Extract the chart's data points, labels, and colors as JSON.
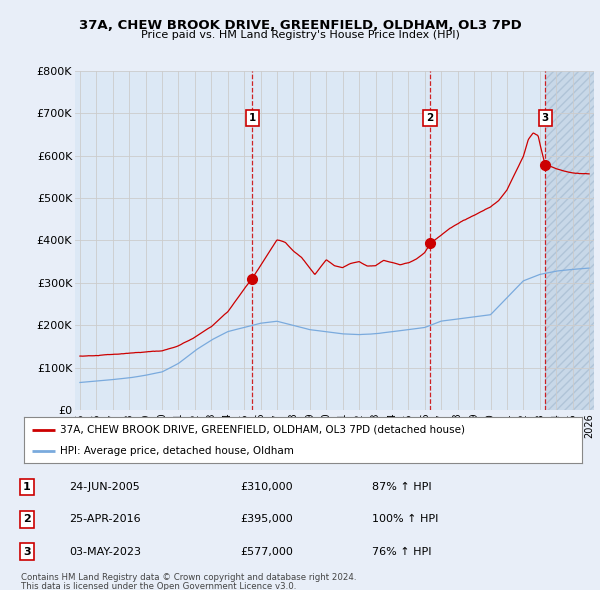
{
  "title": "37A, CHEW BROOK DRIVE, GREENFIELD, OLDHAM, OL3 7PD",
  "subtitle": "Price paid vs. HM Land Registry's House Price Index (HPI)",
  "ylim": [
    0,
    800000
  ],
  "yticks": [
    0,
    100000,
    200000,
    300000,
    400000,
    500000,
    600000,
    700000,
    800000
  ],
  "ytick_labels": [
    "£0",
    "£100K",
    "£200K",
    "£300K",
    "£400K",
    "£500K",
    "£600K",
    "£700K",
    "£800K"
  ],
  "x_start_year": 1995,
  "x_end_year": 2026,
  "sale1_year": 2005.5,
  "sale1_price": 310000,
  "sale2_year": 2016.32,
  "sale2_price": 395000,
  "sale3_year": 2023.34,
  "sale3_price": 577000,
  "red_line_color": "#cc0000",
  "blue_line_color": "#7aaadd",
  "grid_color": "#cccccc",
  "bg_color": "#e8eef8",
  "plot_bg": "#dce8f5",
  "hatch_bg": "#c8d8e8",
  "legend_label_red": "37A, CHEW BROOK DRIVE, GREENFIELD, OLDHAM, OL3 7PD (detached house)",
  "legend_label_blue": "HPI: Average price, detached house, Oldham",
  "sale_labels": [
    "1",
    "2",
    "3"
  ],
  "sale_dates": [
    "24-JUN-2005",
    "25-APR-2016",
    "03-MAY-2023"
  ],
  "sale_prices_str": [
    "£310,000",
    "£395,000",
    "£577,000"
  ],
  "sale_hpi": [
    "87% ↑ HPI",
    "100% ↑ HPI",
    "76% ↑ HPI"
  ],
  "footnote1": "Contains HM Land Registry data © Crown copyright and database right 2024.",
  "footnote2": "This data is licensed under the Open Government Licence v3.0."
}
